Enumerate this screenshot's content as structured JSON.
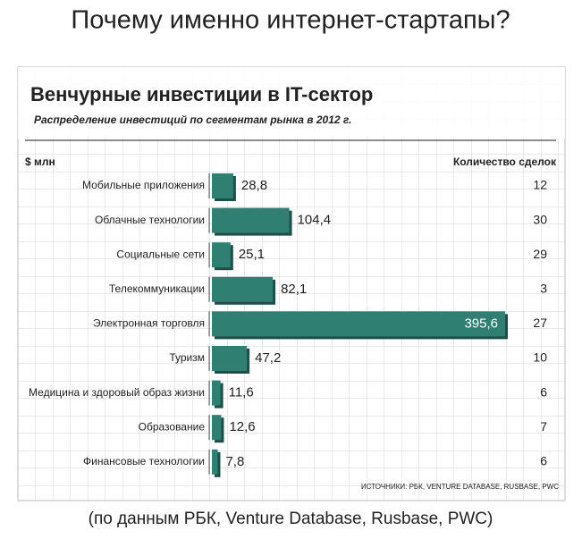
{
  "slide": {
    "title": "Почему именно интернет-стартапы?",
    "caption": "(по данным РБК, Venture Database, Rusbase, PWC)"
  },
  "chart_data": {
    "type": "bar",
    "orientation": "horizontal",
    "title": "Венчурные инвестиции в IT-сектор",
    "subtitle": "Распределение инвестиций по сегментам рынка в 2012 г.",
    "value_axis_label": "$ млн",
    "count_label": "Количество сделок",
    "source": "ИСТОЧНИКИ: РБК, VENTURE DATABASE, RUSBASE, PWC",
    "categories": [
      "Мобильные приложения",
      "Облачные технологии",
      "Социальные сети",
      "Телекоммуникации",
      "Электронная торговля",
      "Туризм",
      "Медицина и здоровый образ жизни",
      "Образование",
      "Финансовые технологии"
    ],
    "values": [
      28.8,
      104.4,
      25.1,
      82.1,
      395.6,
      47.2,
      11.6,
      12.6,
      7.8
    ],
    "value_labels": [
      "28,8",
      "104,4",
      "25,1",
      "82,1",
      "395,6",
      "47,2",
      "11,6",
      "12,6",
      "7,8"
    ],
    "deal_counts": [
      12,
      30,
      29,
      3,
      27,
      10,
      6,
      7,
      6
    ],
    "color": "#2f7f72"
  }
}
